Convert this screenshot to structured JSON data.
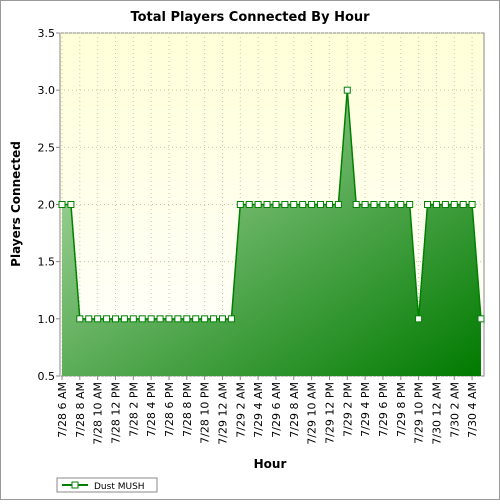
{
  "chart_data": {
    "type": "area",
    "title": "Total Players Connected By Hour",
    "x_label": "Hour",
    "y_label": "Players Connected",
    "categories": [
      "7/28 6 AM",
      null,
      "7/28 8 AM",
      null,
      "7/28 10 AM",
      null,
      "7/28 12 PM",
      null,
      "7/28 2 PM",
      null,
      "7/28 4 PM",
      null,
      "7/28 6 PM",
      null,
      "7/28 8 PM",
      null,
      "7/28 10 PM",
      null,
      "7/29 12 AM",
      null,
      "7/29 2 AM",
      null,
      "7/29 4 AM",
      null,
      "7/29 6 AM",
      null,
      "7/29 8 AM",
      null,
      "7/29 10 AM",
      null,
      "7/29 12 PM",
      null,
      "7/29 2 PM",
      null,
      "7/29 4 PM",
      null,
      "7/29 6 PM",
      null,
      "7/29 8 PM",
      null,
      "7/29 10 PM",
      null,
      "7/30 12 AM",
      null,
      "7/30 2 AM",
      null,
      "7/30 4 AM",
      null
    ],
    "series": [
      {
        "name": "Dust MUSH",
        "color": "#008000",
        "values": [
          2,
          2,
          1,
          1,
          1,
          1,
          1,
          1,
          1,
          1,
          1,
          1,
          1,
          1,
          1,
          1,
          1,
          1,
          1,
          1,
          2,
          2,
          2,
          2,
          2,
          2,
          2,
          2,
          2,
          2,
          2,
          2,
          3,
          2,
          2,
          2,
          2,
          2,
          2,
          2,
          1,
          2,
          2,
          2,
          2,
          2,
          2,
          1
        ]
      }
    ],
    "ylim": [
      0.5,
      3.5
    ],
    "yticks": [
      0.5,
      {
        "value": 1,
        "label": "1.0"
      },
      1.5,
      {
        "value": 2,
        "label": "2.0"
      },
      2.5,
      {
        "value": 3,
        "label": "3.0"
      },
      3.5
    ],
    "grid": true,
    "legend": "bottom-left"
  }
}
